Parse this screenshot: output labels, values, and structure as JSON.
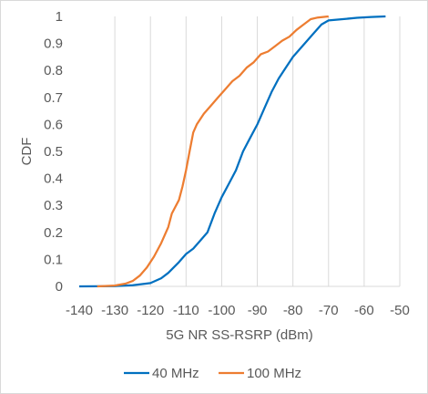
{
  "chart_data": {
    "type": "line",
    "title": "",
    "xlabel": "5G NR SS-RSRP (dBm)",
    "ylabel": "CDF",
    "xlim": [
      -140,
      -50
    ],
    "ylim": [
      0,
      1
    ],
    "x_ticks": [
      "-140",
      "-130",
      "-120",
      "-110",
      "-100",
      "-90",
      "-80",
      "-70",
      "-60",
      "-50"
    ],
    "y_ticks": [
      "0",
      "0.1",
      "0.2",
      "0.3",
      "0.4",
      "0.5",
      "0.6",
      "0.7",
      "0.8",
      "0.9",
      "1"
    ],
    "grid": "vertical",
    "legend_position": "bottom",
    "series": [
      {
        "name": "40 MHz",
        "color": "#0070C0",
        "points": [
          [
            -140,
            0
          ],
          [
            -130,
            0.001
          ],
          [
            -125,
            0.004
          ],
          [
            -120,
            0.012
          ],
          [
            -117,
            0.03
          ],
          [
            -115,
            0.05
          ],
          [
            -112,
            0.09
          ],
          [
            -110,
            0.12
          ],
          [
            -108,
            0.14
          ],
          [
            -106,
            0.17
          ],
          [
            -104,
            0.2
          ],
          [
            -102,
            0.27
          ],
          [
            -100,
            0.33
          ],
          [
            -98,
            0.38
          ],
          [
            -96,
            0.43
          ],
          [
            -94,
            0.5
          ],
          [
            -92,
            0.55
          ],
          [
            -90,
            0.6
          ],
          [
            -88,
            0.66
          ],
          [
            -86,
            0.72
          ],
          [
            -84,
            0.77
          ],
          [
            -82,
            0.81
          ],
          [
            -80,
            0.85
          ],
          [
            -78,
            0.88
          ],
          [
            -76,
            0.91
          ],
          [
            -74,
            0.94
          ],
          [
            -72,
            0.97
          ],
          [
            -70,
            0.985
          ],
          [
            -66,
            0.99
          ],
          [
            -62,
            0.995
          ],
          [
            -58,
            0.998
          ],
          [
            -54,
            1
          ]
        ]
      },
      {
        "name": "100 MHz",
        "color": "#ED7D31",
        "points": [
          [
            -135,
            0
          ],
          [
            -130,
            0.003
          ],
          [
            -127,
            0.01
          ],
          [
            -125,
            0.02
          ],
          [
            -123,
            0.04
          ],
          [
            -121,
            0.07
          ],
          [
            -119,
            0.11
          ],
          [
            -117,
            0.16
          ],
          [
            -115,
            0.22
          ],
          [
            -114,
            0.27
          ],
          [
            -112,
            0.32
          ],
          [
            -111,
            0.37
          ],
          [
            -110,
            0.43
          ],
          [
            -109,
            0.5
          ],
          [
            -108,
            0.57
          ],
          [
            -107,
            0.6
          ],
          [
            -105,
            0.64
          ],
          [
            -103,
            0.67
          ],
          [
            -101,
            0.7
          ],
          [
            -99,
            0.73
          ],
          [
            -97,
            0.76
          ],
          [
            -95,
            0.78
          ],
          [
            -93,
            0.81
          ],
          [
            -91,
            0.83
          ],
          [
            -89,
            0.86
          ],
          [
            -87,
            0.87
          ],
          [
            -85,
            0.89
          ],
          [
            -83,
            0.91
          ],
          [
            -81,
            0.925
          ],
          [
            -79,
            0.95
          ],
          [
            -77,
            0.97
          ],
          [
            -75,
            0.99
          ],
          [
            -73,
            0.996
          ],
          [
            -70,
            1
          ]
        ]
      }
    ]
  }
}
